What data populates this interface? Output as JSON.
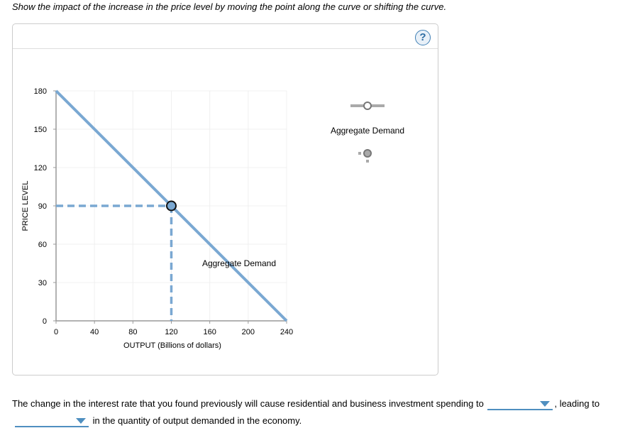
{
  "instruction": "Show the impact of the increase in the price level by moving the point along the curve or shifting the curve.",
  "help_icon": "question-circle-icon",
  "chart_data": {
    "type": "line",
    "xlabel": "OUTPUT (Billions of dollars)",
    "ylabel": "PRICE LEVEL",
    "xlim": [
      0,
      240
    ],
    "ylim": [
      0,
      180
    ],
    "x_ticks": [
      "0",
      "40",
      "80",
      "120",
      "160",
      "200",
      "240"
    ],
    "y_ticks": [
      "0",
      "30",
      "60",
      "90",
      "120",
      "150",
      "180"
    ],
    "grid": true,
    "series": [
      {
        "name": "Aggregate Demand",
        "points": [
          [
            0,
            180
          ],
          [
            240,
            0
          ]
        ],
        "color": "#7aa8d2"
      }
    ],
    "point": {
      "x": 120,
      "y": 90
    },
    "curve_label": "Aggregate Demand"
  },
  "palette": {
    "tool_label": "Aggregate Demand",
    "tools": [
      "line-tool-icon",
      "point-tool-icon"
    ]
  },
  "question": {
    "part1": "The change in the interest rate that you found previously will cause residential and business investment spending to",
    "part2": ", leading to",
    "part3": "in the quantity of output demanded in the economy.",
    "dropdown1": "",
    "dropdown2": ""
  }
}
